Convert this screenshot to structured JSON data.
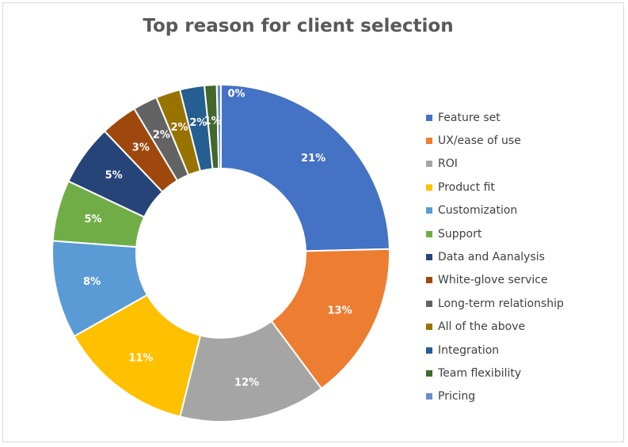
{
  "chart_data": {
    "type": "pie",
    "variant": "donut",
    "title": "Top reason for client selection",
    "legend_position": "right",
    "data_labels_shown": true,
    "slices": [
      {
        "name": "Feature set",
        "label": "21%",
        "value": 21,
        "color": "#4472C4"
      },
      {
        "name": "UX/ease of use",
        "label": "13%",
        "value": 13,
        "color": "#ED7D31"
      },
      {
        "name": "ROI",
        "label": "12%",
        "value": 12,
        "color": "#A5A5A5"
      },
      {
        "name": "Product fit",
        "label": "11%",
        "value": 11,
        "color": "#FFC000"
      },
      {
        "name": "Customization",
        "label": "8%",
        "value": 8,
        "color": "#5B9BD5"
      },
      {
        "name": "Support",
        "label": "5%",
        "value": 5,
        "color": "#70AD47"
      },
      {
        "name": "Data and Aanalysis",
        "label": "5%",
        "value": 5,
        "color": "#264478"
      },
      {
        "name": "White-glove service",
        "label": "3%",
        "value": 3,
        "color": "#9E480E"
      },
      {
        "name": "Long-term relationship",
        "label": "2%",
        "value": 2,
        "color": "#636363"
      },
      {
        "name": "All of the above",
        "label": "2%",
        "value": 2,
        "color": "#997300"
      },
      {
        "name": "Integration",
        "label": "2%",
        "value": 2,
        "color": "#255E91"
      },
      {
        "name": "Team flexibility",
        "label": "1%",
        "value": 1,
        "color": "#43682B"
      },
      {
        "name": "Pricing",
        "label": "0%",
        "value": 0,
        "color": "#698ED0"
      }
    ]
  }
}
